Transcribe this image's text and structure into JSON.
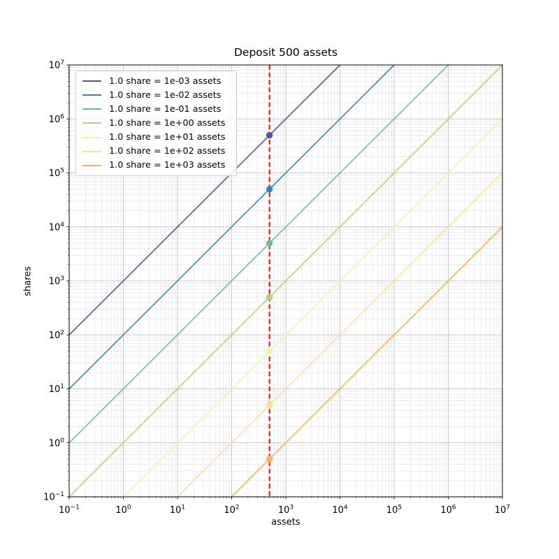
{
  "chart_data": {
    "type": "line",
    "title": "Deposit 500 assets",
    "xlabel": "assets",
    "ylabel": "shares",
    "x_scale": "log",
    "y_scale": "log",
    "xlim": [
      0.1,
      10000000
    ],
    "ylim": [
      0.1,
      10000000
    ],
    "x_tick_exponents": [
      -1,
      0,
      1,
      2,
      3,
      4,
      5,
      6,
      7
    ],
    "y_tick_exponents": [
      -1,
      0,
      1,
      2,
      3,
      4,
      5,
      6,
      7
    ],
    "grid": {
      "major": true,
      "minor": true
    },
    "legend_position": "upper left",
    "deposit": {
      "assets": 500,
      "vline_color": "#ff0000",
      "vline_style": "dashed"
    },
    "series": [
      {
        "label": "1.0 share = 1e-03 assets",
        "assets_per_share": 0.001,
        "color": "#5e4fa2",
        "point": {
          "assets": 500,
          "shares": 500000
        }
      },
      {
        "label": "1.0 share = 1e-02 assets",
        "assets_per_share": 0.01,
        "color": "#3288bd",
        "point": {
          "assets": 500,
          "shares": 50000
        }
      },
      {
        "label": "1.0 share = 1e-01 assets",
        "assets_per_share": 0.1,
        "color": "#66c2a5",
        "point": {
          "assets": 500,
          "shares": 5000
        }
      },
      {
        "label": "1.0 share = 1e+00 assets",
        "assets_per_share": 1,
        "color": "#a8da75",
        "point": {
          "assets": 500,
          "shares": 500
        }
      },
      {
        "label": "1.0 share = 1e+01 assets",
        "assets_per_share": 10,
        "color": "#ecf7a0",
        "point": {
          "assets": 500,
          "shares": 50
        }
      },
      {
        "label": "1.0 share = 1e+02 assets",
        "assets_per_share": 100,
        "color": "#fee08b",
        "point": {
          "assets": 500,
          "shares": 5
        }
      },
      {
        "label": "1.0 share = 1e+03 assets",
        "assets_per_share": 1000,
        "color": "#fdae61",
        "point": {
          "assets": 500,
          "shares": 0.5
        }
      }
    ],
    "style": {
      "grid_major_color": "#c8c8c8",
      "grid_minor_color": "#e4e4e4",
      "spine_color": "#000000",
      "background": "#ffffff"
    }
  }
}
